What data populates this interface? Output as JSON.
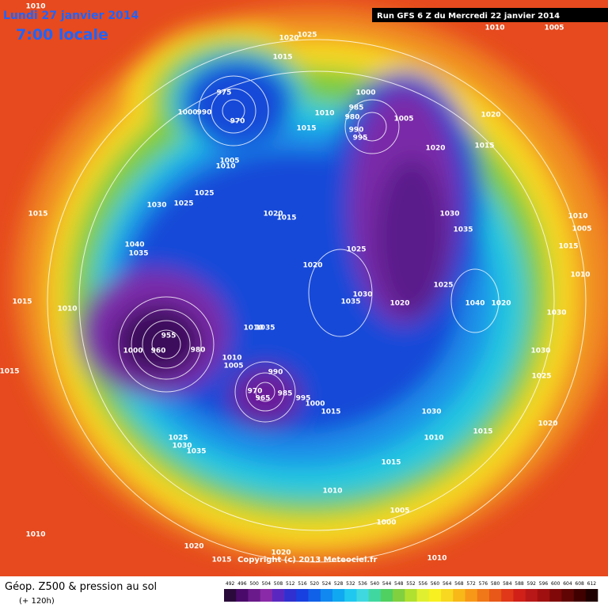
{
  "header": {
    "date": "Lundi 27 janvier 2014",
    "time": "7:00 locale",
    "run": "Run GFS 6 Z du Mercredi 22 janvier 2014"
  },
  "pressure_labels": [
    1010,
    1020,
    1025,
    1010,
    1005,
    1015,
    975,
    1000,
    990,
    970,
    1010,
    1000,
    985,
    980,
    990,
    995,
    1005,
    1020,
    1015,
    1020,
    1015,
    1005,
    1010,
    1025,
    1030,
    1025,
    1015,
    1020,
    1015,
    1030,
    1035,
    1010,
    1005,
    1015,
    1010,
    1040,
    1035,
    1025,
    1020,
    1030,
    1035,
    1020,
    1025,
    1040,
    1020,
    1030,
    1015,
    1010,
    1035,
    1010,
    960,
    955,
    1000,
    980,
    1010,
    1005,
    990,
    970,
    965,
    985,
    995,
    1000,
    1015,
    1030,
    1020,
    1030,
    1025,
    1015,
    1010,
    1015,
    1025,
    1030,
    1035,
    1015,
    1010,
    1005,
    1000,
    1010,
    1020,
    1015,
    1020,
    1010
  ],
  "copyright": "Copyright (c) 2013 Meteociel.fr",
  "footer": {
    "title": "Géop. Z500 & pression au sol",
    "lead": "(+ 120h)"
  },
  "legend": {
    "values": [
      492,
      496,
      500,
      504,
      508,
      512,
      516,
      520,
      524,
      528,
      532,
      536,
      540,
      544,
      548,
      552,
      556,
      560,
      564,
      568,
      572,
      576,
      580,
      584,
      588,
      592,
      596,
      600,
      604,
      608,
      612
    ],
    "colors": [
      "#2a0a3a",
      "#4a0a6a",
      "#6a1a8a",
      "#8a2aa8",
      "#5a28c0",
      "#3030d0",
      "#1840e0",
      "#1060e8",
      "#1088f0",
      "#10a8f0",
      "#20c8f0",
      "#40d8e0",
      "#40d8a0",
      "#50d060",
      "#80d040",
      "#b0e030",
      "#e0f030",
      "#f8f020",
      "#f8d820",
      "#f8b818",
      "#f89818",
      "#f07818",
      "#e85818",
      "#e03818",
      "#d02018",
      "#b81818",
      "#a01010",
      "#800808",
      "#600404",
      "#400000",
      "#200000"
    ]
  }
}
